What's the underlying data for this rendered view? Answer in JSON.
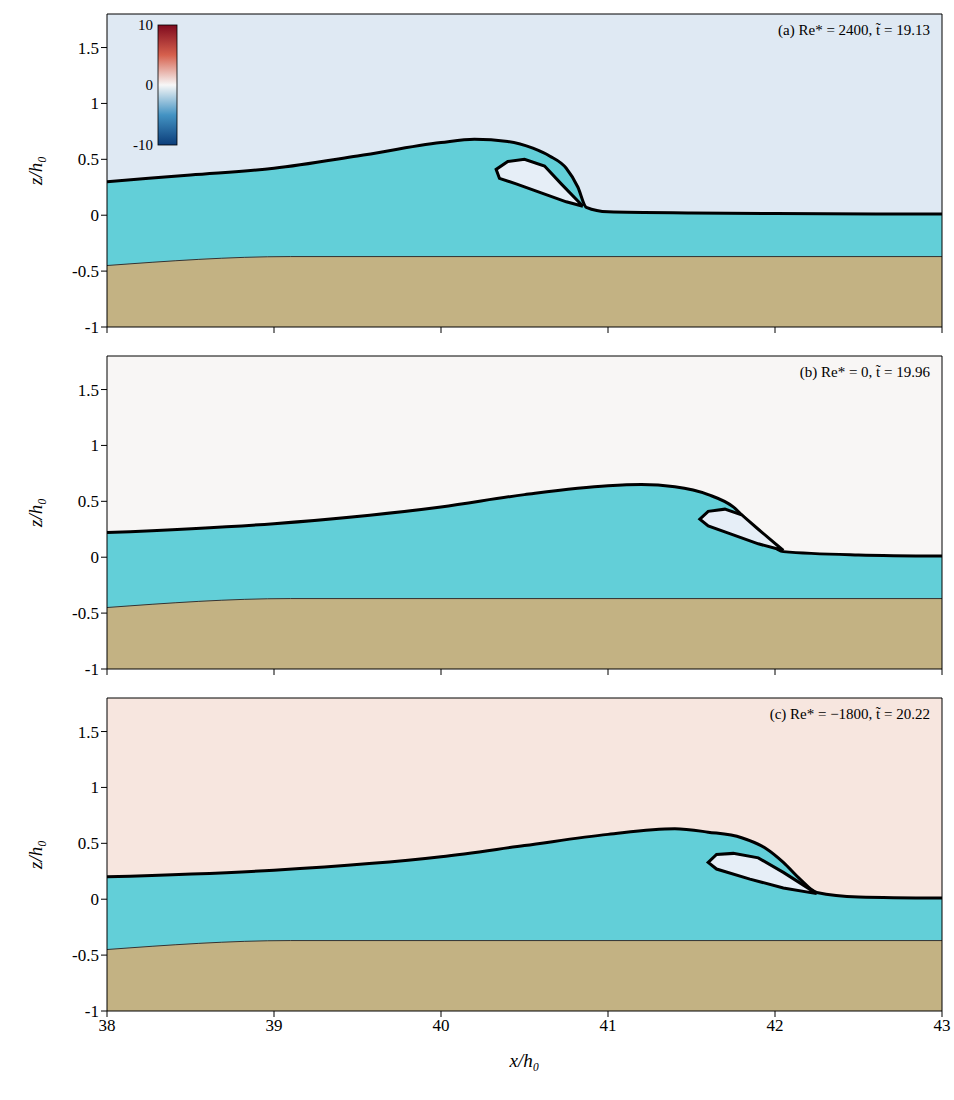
{
  "chart_data": [
    {
      "type": "area",
      "title": "(a) Re* = 2400, t̃ = 19.13",
      "y_label": "z/h₀",
      "xlim": [
        38,
        43
      ],
      "ylim": [
        -1,
        1.8
      ],
      "xticks": [
        38,
        39,
        40,
        41,
        42,
        43
      ],
      "yticks": [
        -1,
        -0.5,
        0,
        0.5,
        1,
        1.5
      ],
      "tick_labels": "y",
      "colorbar": {
        "range": [
          -10,
          10
        ],
        "ticks": [
          -10,
          0,
          10
        ]
      },
      "series": [
        {
          "type": "area",
          "color": "#62cfd8",
          "x": [
            38,
            38.5,
            39,
            39.5,
            40,
            40.2,
            40.4,
            40.55,
            40.65,
            40.75,
            40.82,
            40.87,
            41,
            41.5,
            42,
            43
          ],
          "values": [
            0.3,
            0.36,
            0.42,
            0.53,
            0.65,
            0.68,
            0.66,
            0.6,
            0.53,
            0.42,
            0.25,
            0.07,
            0.03,
            0.02,
            0.015,
            0.01
          ]
        },
        {
          "type": "area",
          "color": "#c3b283",
          "x": [
            38,
            39.1,
            43
          ],
          "values": [
            -0.45,
            -0.37,
            -0.37
          ]
        },
        {
          "type": "line",
          "color": "#000000",
          "x": [
            40.85,
            40.72,
            40.62,
            40.5,
            40.4,
            40.33,
            40.35,
            40.45,
            40.6,
            40.75,
            40.85
          ],
          "values": [
            0.08,
            0.28,
            0.44,
            0.5,
            0.48,
            0.41,
            0.33,
            0.28,
            0.2,
            0.12,
            0.08
          ]
        }
      ]
    },
    {
      "type": "area",
      "title": "(b) Re* = 0, t̃ = 19.96",
      "y_label": "z/h₀",
      "xlim": [
        38,
        43
      ],
      "ylim": [
        -1,
        1.8
      ],
      "xticks": [
        38,
        39,
        40,
        41,
        42,
        43
      ],
      "yticks": [
        -1,
        -0.5,
        0,
        0.5,
        1,
        1.5
      ],
      "tick_labels": "y",
      "series": [
        {
          "type": "area",
          "color": "#62cfd8",
          "x": [
            38,
            39,
            40,
            40.5,
            41,
            41.2,
            41.4,
            41.6,
            41.75,
            41.85,
            41.95,
            42.05,
            42.5,
            43
          ],
          "values": [
            0.22,
            0.3,
            0.45,
            0.56,
            0.64,
            0.65,
            0.63,
            0.56,
            0.45,
            0.3,
            0.15,
            0.05,
            0.02,
            0.01
          ]
        },
        {
          "type": "area",
          "color": "#c3b283",
          "x": [
            38,
            39.1,
            43
          ],
          "values": [
            -0.45,
            -0.37,
            -0.37
          ]
        },
        {
          "type": "line",
          "color": "#000000",
          "x": [
            42.05,
            41.9,
            41.8,
            41.7,
            41.6,
            41.55,
            41.6,
            41.75,
            41.9,
            42.05
          ],
          "values": [
            0.06,
            0.25,
            0.38,
            0.43,
            0.41,
            0.34,
            0.28,
            0.2,
            0.12,
            0.06
          ]
        }
      ]
    },
    {
      "type": "area",
      "title": "(c) Re* = −1800, t̃ = 20.22",
      "y_label": "z/h₀",
      "x_label": "x/h₀",
      "xlim": [
        38,
        43
      ],
      "ylim": [
        -1,
        1.8
      ],
      "xticks": [
        38,
        39,
        40,
        41,
        42,
        43
      ],
      "yticks": [
        -1,
        -0.5,
        0,
        0.5,
        1,
        1.5
      ],
      "series": [
        {
          "type": "area",
          "color": "#62cfd8",
          "x": [
            38,
            39,
            40,
            40.5,
            41,
            41.4,
            41.6,
            41.8,
            41.95,
            42.05,
            42.15,
            42.25,
            42.5,
            43
          ],
          "values": [
            0.2,
            0.26,
            0.38,
            0.48,
            0.58,
            0.63,
            0.6,
            0.55,
            0.45,
            0.33,
            0.18,
            0.06,
            0.02,
            0.01
          ]
        },
        {
          "type": "area",
          "color": "#c3b283",
          "x": [
            38,
            39.1,
            43
          ],
          "values": [
            -0.45,
            -0.37,
            -0.37
          ]
        },
        {
          "type": "line",
          "color": "#000000",
          "x": [
            42.25,
            42.05,
            41.9,
            41.75,
            41.65,
            41.6,
            41.65,
            41.85,
            42.05,
            42.25
          ],
          "values": [
            0.05,
            0.24,
            0.37,
            0.41,
            0.4,
            0.33,
            0.27,
            0.18,
            0.1,
            0.05
          ]
        }
      ]
    }
  ]
}
